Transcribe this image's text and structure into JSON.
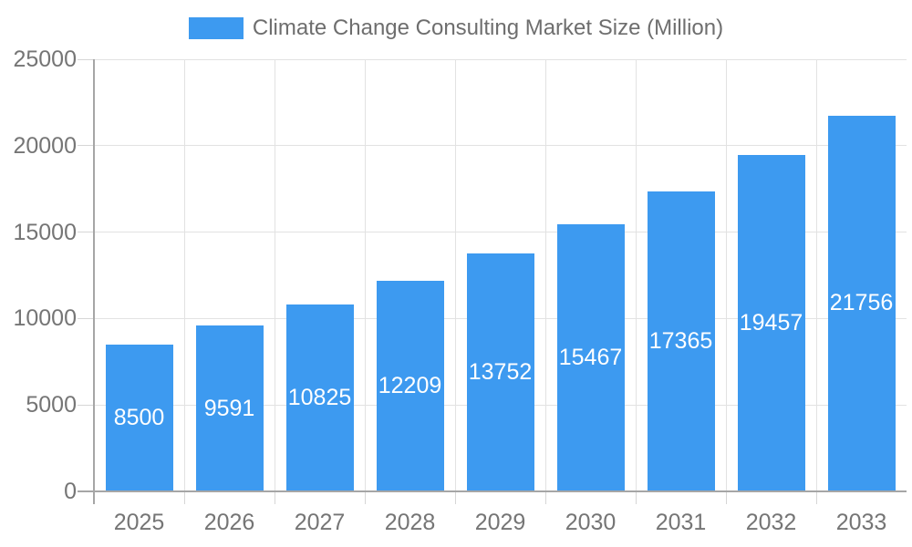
{
  "chart_data": {
    "type": "bar",
    "title": "Climate Change Consulting Market Size (Million)",
    "legend": {
      "label": "Climate Change Consulting Market Size (Million)",
      "position": "top"
    },
    "categories": [
      "2025",
      "2026",
      "2027",
      "2028",
      "2029",
      "2030",
      "2031",
      "2032",
      "2033"
    ],
    "series": [
      {
        "name": "Climate Change Consulting Market Size (Million)",
        "values": [
          8500,
          9591,
          10825,
          12209,
          13752,
          15467,
          17365,
          19457,
          21756
        ]
      }
    ],
    "bar_labels": [
      8500,
      9591,
      10825,
      12209,
      13752,
      15467,
      17365,
      19457,
      21756
    ],
    "xlabel": "",
    "ylabel": "",
    "ylim": [
      0,
      25000
    ],
    "yticks": [
      0,
      5000,
      10000,
      15000,
      20000,
      25000
    ],
    "ytick_labels": [
      "0",
      "5000",
      "10000",
      "15000",
      "20000",
      "25000"
    ],
    "grid": true,
    "colors": {
      "bar": "#3d9af0",
      "bar_label": "#ffffff",
      "axis_text": "#757575",
      "legend_text": "#6e6e6e",
      "gridline": "#e2e2e2",
      "tick": "#d6d6d6",
      "axis_line": "#a6a6a6",
      "background": "#ffffff"
    }
  }
}
